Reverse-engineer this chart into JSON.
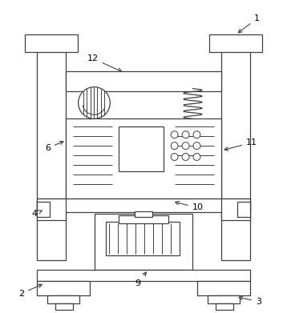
{
  "fig_width": 3.58,
  "fig_height": 3.91,
  "dpi": 100,
  "bg_color": "#ffffff",
  "line_color": "#404040",
  "lw": 0.9,
  "label_fontsize": 8.0
}
